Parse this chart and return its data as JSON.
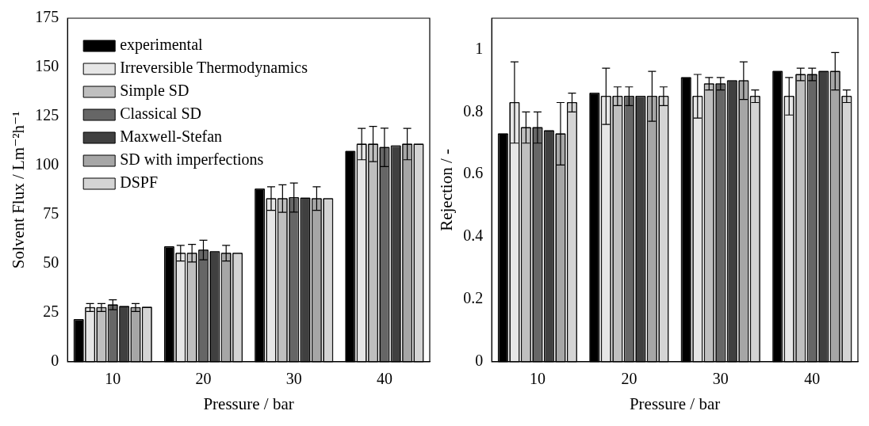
{
  "chart_data": [
    {
      "type": "bar",
      "xlabel": "Pressure / bar",
      "ylabel": "Solvent Flux / Lm⁻²h⁻¹",
      "categories": [
        "10",
        "20",
        "30",
        "40"
      ],
      "ylim": [
        0,
        175
      ],
      "yticks": [
        0,
        25,
        50,
        75,
        100,
        125,
        150,
        175
      ],
      "legend": "top left",
      "series": [
        {
          "name": "experimental",
          "color": "#000000",
          "values": [
            21.5,
            58.6,
            88,
            107.2
          ]
        },
        {
          "name": "Irreversible Thermodynamics",
          "color": "#e6e6e6",
          "values": [
            27.6,
            55.3,
            83.1,
            110.9
          ],
          "errors": [
            2,
            4,
            6,
            8
          ]
        },
        {
          "name": "Simple SD",
          "color": "#bfbfbf",
          "values": [
            27.6,
            55.3,
            83.1,
            110.9
          ],
          "errors": [
            2,
            4.5,
            7,
            9
          ]
        },
        {
          "name": "Classical SD",
          "color": "#666666",
          "values": [
            29,
            56.9,
            83.6,
            109.2
          ],
          "errors": [
            2.5,
            5,
            7.4,
            9.8
          ]
        },
        {
          "name": "Maxwell-Stefan",
          "color": "#404040",
          "values": [
            28.2,
            56.1,
            83.4,
            110
          ]
        },
        {
          "name": "SD with imperfections",
          "color": "#a6a6a6",
          "values": [
            27.6,
            55.3,
            83.1,
            110.9
          ],
          "errors": [
            2,
            4,
            6,
            8
          ]
        },
        {
          "name": "DSPF",
          "color": "#d4d4d4",
          "values": [
            27.8,
            55.3,
            83.1,
            110.9
          ]
        }
      ]
    },
    {
      "type": "bar",
      "xlabel": "Pressure / bar",
      "ylabel": "Rejection / -",
      "categories": [
        "10",
        "20",
        "30",
        "40"
      ],
      "ylim": [
        0,
        1.1
      ],
      "yticks": [
        0,
        0.2,
        0.4,
        0.6,
        0.8,
        1
      ],
      "series": [
        {
          "color": "#000000",
          "values": [
            0.73,
            0.86,
            0.91,
            0.93
          ]
        },
        {
          "color": "#e6e6e6",
          "values": [
            0.83,
            0.85,
            0.85,
            0.85
          ],
          "errors": [
            0.13,
            0.09,
            0.07,
            0.06
          ]
        },
        {
          "color": "#bfbfbf",
          "values": [
            0.75,
            0.85,
            0.89,
            0.92
          ],
          "errors": [
            0.05,
            0.03,
            0.02,
            0.02
          ]
        },
        {
          "color": "#666666",
          "values": [
            0.75,
            0.85,
            0.89,
            0.92
          ],
          "errors": [
            0.05,
            0.03,
            0.02,
            0.02
          ]
        },
        {
          "color": "#404040",
          "values": [
            0.74,
            0.85,
            0.9,
            0.93
          ]
        },
        {
          "color": "#a6a6a6",
          "values": [
            0.73,
            0.85,
            0.9,
            0.93
          ],
          "errors": [
            0.1,
            0.08,
            0.06,
            0.06
          ]
        },
        {
          "color": "#d4d4d4",
          "values": [
            0.83,
            0.85,
            0.85,
            0.85
          ],
          "errors": [
            0.03,
            0.03,
            0.02,
            0.02
          ]
        }
      ]
    }
  ]
}
